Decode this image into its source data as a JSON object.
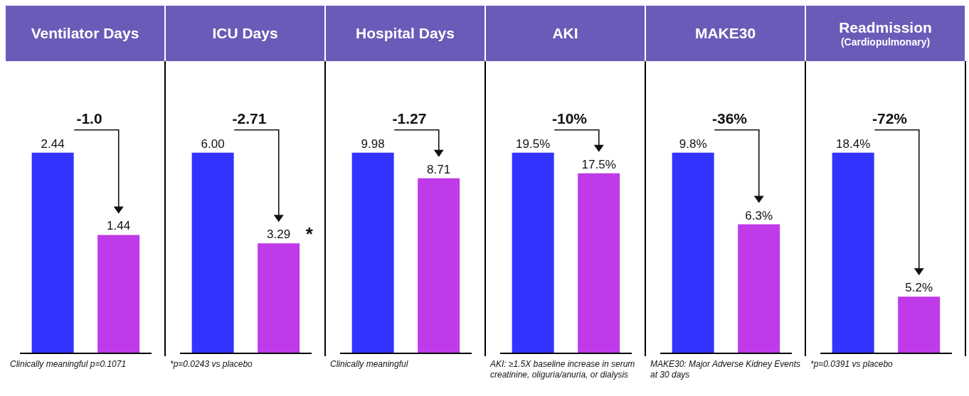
{
  "chart_data": [
    {
      "type": "bar",
      "title": "Ventilator Days",
      "categories": [
        null,
        null
      ],
      "values": [
        2.44,
        1.44
      ],
      "colors": [
        "#3333ff",
        "#bf3ae8"
      ],
      "value_labels": [
        "2.44",
        "1.44"
      ],
      "annotations": [
        "-1.0",
        "Clinically meaningful p=0.1071"
      ]
    },
    {
      "type": "bar",
      "title": "ICU Days",
      "categories": [
        null,
        null
      ],
      "values": [
        6.0,
        3.29
      ],
      "colors": [
        "#3333ff",
        "#bf3ae8"
      ],
      "value_labels": [
        "6.00",
        "3.29"
      ],
      "annotations": [
        "-2.71",
        "*",
        "*p=0.0243 vs placebo"
      ]
    },
    {
      "type": "bar",
      "title": "Hospital Days",
      "categories": [
        null,
        null
      ],
      "values": [
        9.98,
        8.71
      ],
      "colors": [
        "#3333ff",
        "#bf3ae8"
      ],
      "value_labels": [
        "9.98",
        "8.71"
      ],
      "annotations": [
        "-1.27",
        "Clinically meaningful"
      ]
    },
    {
      "type": "bar",
      "title": "AKI",
      "categories": [
        null,
        null
      ],
      "values": [
        19.5,
        17.5
      ],
      "colors": [
        "#3333ff",
        "#bf3ae8"
      ],
      "value_labels": [
        "19.5%",
        "17.5%"
      ],
      "annotations": [
        "-10%",
        "AKI: ≥1.5X baseline increase in serum creatinine, oliguria/anuria, or dialysis"
      ]
    },
    {
      "type": "bar",
      "title": "MAKE30",
      "categories": [
        null,
        null
      ],
      "values": [
        9.8,
        6.3
      ],
      "colors": [
        "#3333ff",
        "#bf3ae8"
      ],
      "value_labels": [
        "9.8%",
        "6.3%"
      ],
      "annotations": [
        "-36%",
        "MAKE30: Major Adverse Kidney Events at 30 days"
      ]
    },
    {
      "type": "bar",
      "title": "Readmission",
      "subtitle": "(Cardiopulmonary)",
      "categories": [
        null,
        null
      ],
      "values": [
        18.4,
        5.2
      ],
      "colors": [
        "#3333ff",
        "#bf3ae8"
      ],
      "value_labels": [
        "18.4%",
        "5.2%"
      ],
      "annotations": [
        "-72%",
        "*p=0.0391 vs placebo"
      ]
    }
  ]
}
